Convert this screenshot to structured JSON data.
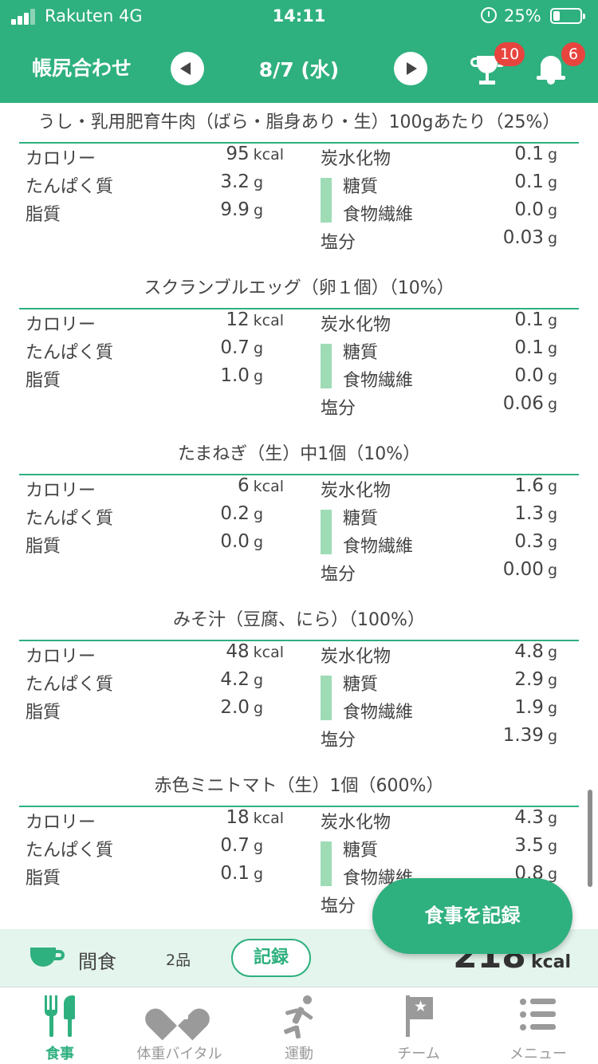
{
  "status_bar": {
    "carrier": "Rakuten  4G",
    "time": "14:11",
    "battery": "25%"
  },
  "header": {
    "title": "帳尻合わせ",
    "date": "8/7 (水)",
    "trophy_badge": "10",
    "bell_badge": "6"
  },
  "foods": [
    {
      "title": "うし・乳用肥育牛肉（ばら・脂身あり・生）100gあたり（25%）",
      "calories": {
        "label": "カロリー",
        "value": "95",
        "unit": "kcal"
      },
      "protein": {
        "label": "たんぱく質",
        "value": "3.2",
        "unit": "g"
      },
      "fat": {
        "label": "脂質",
        "value": "9.9",
        "unit": "g"
      },
      "carbs": {
        "label": "炭水化物",
        "value": "0.1",
        "unit": "g"
      },
      "sugar": {
        "label": "糖質",
        "value": "0.1",
        "unit": "g"
      },
      "fiber": {
        "label": "食物繊維",
        "value": "0.0",
        "unit": "g"
      },
      "salt": {
        "label": "塩分",
        "value": "0.03",
        "unit": "g"
      }
    },
    {
      "title": "スクランブルエッグ（卵１個）（10%）",
      "calories": {
        "label": "カロリー",
        "value": "12",
        "unit": "kcal"
      },
      "protein": {
        "label": "たんぱく質",
        "value": "0.7",
        "unit": "g"
      },
      "fat": {
        "label": "脂質",
        "value": "1.0",
        "unit": "g"
      },
      "carbs": {
        "label": "炭水化物",
        "value": "0.1",
        "unit": "g"
      },
      "sugar": {
        "label": "糖質",
        "value": "0.1",
        "unit": "g"
      },
      "fiber": {
        "label": "食物繊維",
        "value": "0.0",
        "unit": "g"
      },
      "salt": {
        "label": "塩分",
        "value": "0.06",
        "unit": "g"
      }
    },
    {
      "title": "たまねぎ（生）中1個（10%）",
      "calories": {
        "label": "カロリー",
        "value": "6",
        "unit": "kcal"
      },
      "protein": {
        "label": "たんぱく質",
        "value": "0.2",
        "unit": "g"
      },
      "fat": {
        "label": "脂質",
        "value": "0.0",
        "unit": "g"
      },
      "carbs": {
        "label": "炭水化物",
        "value": "1.6",
        "unit": "g"
      },
      "sugar": {
        "label": "糖質",
        "value": "1.3",
        "unit": "g"
      },
      "fiber": {
        "label": "食物繊維",
        "value": "0.3",
        "unit": "g"
      },
      "salt": {
        "label": "塩分",
        "value": "0.00",
        "unit": "g"
      }
    },
    {
      "title": "みそ汁（豆腐、にら）（100%）",
      "calories": {
        "label": "カロリー",
        "value": "48",
        "unit": "kcal"
      },
      "protein": {
        "label": "たんぱく質",
        "value": "4.2",
        "unit": "g"
      },
      "fat": {
        "label": "脂質",
        "value": "2.0",
        "unit": "g"
      },
      "carbs": {
        "label": "炭水化物",
        "value": "4.8",
        "unit": "g"
      },
      "sugar": {
        "label": "糖質",
        "value": "2.9",
        "unit": "g"
      },
      "fiber": {
        "label": "食物繊維",
        "value": "1.9",
        "unit": "g"
      },
      "salt": {
        "label": "塩分",
        "value": "1.39",
        "unit": "g"
      }
    },
    {
      "title": "赤色ミニトマト（生）1個（600%）",
      "calories": {
        "label": "カロリー",
        "value": "18",
        "unit": "kcal"
      },
      "protein": {
        "label": "たんぱく質",
        "value": "0.7",
        "unit": "g"
      },
      "fat": {
        "label": "脂質",
        "value": "0.1",
        "unit": "g"
      },
      "carbs": {
        "label": "炭水化物",
        "value": "4.3",
        "unit": "g"
      },
      "sugar": {
        "label": "糖質",
        "value": "3.5",
        "unit": "g"
      },
      "fiber": {
        "label": "食物繊維",
        "value": "0.8",
        "unit": "g"
      },
      "salt": {
        "label": "塩分",
        "value": "",
        "unit": ""
      }
    }
  ],
  "record_button": "食事を記録",
  "snack": {
    "label": "間食",
    "count": "2品",
    "record": "記録",
    "kcal_value": "218",
    "kcal_unit": "kcal"
  },
  "tabs": [
    {
      "label": "食事",
      "icon": "fork-knife-icon",
      "active": true
    },
    {
      "label": "体重バイタル",
      "icon": "heart-scale-icon",
      "active": false
    },
    {
      "label": "運動",
      "icon": "runner-icon",
      "active": false
    },
    {
      "label": "チーム",
      "icon": "flag-icon",
      "active": false
    },
    {
      "label": "メニュー",
      "icon": "menu-list-icon",
      "active": false
    }
  ],
  "colors": {
    "brand": "#2fb07f",
    "badge": "#e8443e",
    "sugar_bar": "#9fdcb6"
  }
}
